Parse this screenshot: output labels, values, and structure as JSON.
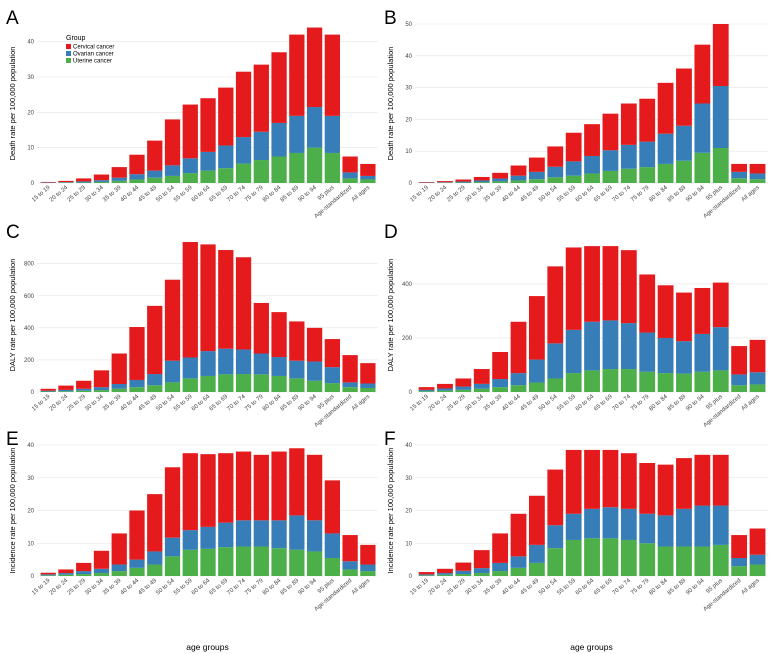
{
  "colors": {
    "cervical": "#e41a1c",
    "ovarian": "#377eb8",
    "uterine": "#4daf4a"
  },
  "legend": {
    "title": "Group",
    "items": [
      {
        "name": "Cervical cancer",
        "color": "#e41a1c"
      },
      {
        "name": "Ovarian cancer",
        "color": "#377eb8"
      },
      {
        "name": "Uterine cancer",
        "color": "#4daf4a"
      }
    ]
  },
  "chart_data": [
    {
      "panel": "A",
      "type": "bar",
      "stacked": true,
      "ylabel": "Death rate per 100,000 population",
      "xlabel": "",
      "ylim": [
        0,
        45
      ],
      "yticks": [
        0,
        10,
        20,
        30,
        40
      ],
      "categories": [
        "15 to 19",
        "20 to 24",
        "25 to 29",
        "30 to 34",
        "35 to 39",
        "40 to 44",
        "45 to 49",
        "50 to 54",
        "55 to 59",
        "60 to 64",
        "65 to 69",
        "70 to 74",
        "75 to 79",
        "80 to 84",
        "85 to 89",
        "90 to 94",
        "95 plus",
        "Age-standardized",
        "All ages"
      ],
      "series": [
        {
          "name": "Uterine cancer",
          "values": [
            0.05,
            0.1,
            0.15,
            0.3,
            0.6,
            1.0,
            1.5,
            2.0,
            2.8,
            3.5,
            4.2,
            5.5,
            6.5,
            7.5,
            8.5,
            10,
            8.5,
            1.3,
            1.0
          ]
        },
        {
          "name": "Ovarian cancer",
          "values": [
            0.1,
            0.15,
            0.3,
            0.5,
            0.9,
            1.5,
            2.0,
            3.0,
            4.2,
            5.3,
            6.4,
            7.5,
            8.0,
            9.5,
            10.5,
            11.5,
            10.5,
            1.7,
            1.0
          ]
        },
        {
          "name": "Cervical cancer",
          "values": [
            0.15,
            0.35,
            0.85,
            1.6,
            3.0,
            5.5,
            8.5,
            13.0,
            15.2,
            15.2,
            16.4,
            18.5,
            19.0,
            20.0,
            23.0,
            22.5,
            23.0,
            4.5,
            3.4
          ]
        }
      ]
    },
    {
      "panel": "B",
      "type": "bar",
      "stacked": true,
      "ylabel": "Death rate per 100,000 population",
      "xlabel": "",
      "ylim": [
        0,
        50
      ],
      "yticks": [
        0,
        10,
        20,
        30,
        40,
        50
      ],
      "categories": [
        "15 to 19",
        "20 to 24",
        "25 to 29",
        "30 to 34",
        "35 to 39",
        "40 to 44",
        "45 to 49",
        "50 to 54",
        "55 to 59",
        "60 to 64",
        "65 to 69",
        "70 to 74",
        "75 to 79",
        "80 to 84",
        "85 to 89",
        "90 to 94",
        "95 plus",
        "Age-standardized",
        "All ages"
      ],
      "series": [
        {
          "name": "Uterine cancer",
          "values": [
            0.05,
            0.1,
            0.15,
            0.3,
            0.5,
            0.8,
            1.2,
            1.8,
            2.3,
            3.0,
            3.8,
            4.5,
            5.0,
            6.0,
            7.0,
            9.5,
            11.0,
            1.5,
            1.2
          ]
        },
        {
          "name": "Ovarian cancer",
          "values": [
            0.1,
            0.15,
            0.3,
            0.5,
            0.9,
            1.5,
            2.3,
            3.3,
            4.5,
            5.5,
            6.5,
            7.5,
            8.0,
            9.5,
            11.0,
            15.5,
            19.5,
            2.0,
            1.8
          ]
        },
        {
          "name": "Cervical cancer",
          "values": [
            0.15,
            0.35,
            0.65,
            1.1,
            1.8,
            3.2,
            4.5,
            6.4,
            9.0,
            10.0,
            11.5,
            13.0,
            13.5,
            16.0,
            18.0,
            18.5,
            19.5,
            2.5,
            3.0
          ]
        }
      ]
    },
    {
      "panel": "C",
      "type": "bar",
      "stacked": true,
      "ylabel": "DALY rate per 100,000 population",
      "xlabel": "",
      "ylim": [
        0,
        960
      ],
      "yticks": [
        0,
        200,
        400,
        600,
        800
      ],
      "categories": [
        "15 to 19",
        "20 to 24",
        "25 to 29",
        "30 to 34",
        "35 to 39",
        "40 to 44",
        "45 to 49",
        "50 to 54",
        "55 to 59",
        "60 to 64",
        "65 to 69",
        "70 to 74",
        "75 to 79",
        "80 to 84",
        "85 to 89",
        "90 to 94",
        "95 plus",
        "Age-standardized",
        "All ages"
      ],
      "series": [
        {
          "name": "Uterine cancer",
          "values": [
            3,
            5,
            8,
            12,
            20,
            30,
            42,
            60,
            85,
            100,
            110,
            112,
            110,
            100,
            85,
            70,
            55,
            30,
            25
          ]
        },
        {
          "name": "Ovarian cancer",
          "values": [
            5,
            8,
            12,
            18,
            30,
            45,
            70,
            135,
            130,
            155,
            160,
            153,
            130,
            118,
            110,
            120,
            100,
            30,
            28
          ]
        },
        {
          "name": "Cervical cancer",
          "values": [
            12,
            27,
            50,
            105,
            190,
            330,
            425,
            505,
            720,
            665,
            615,
            575,
            315,
            280,
            245,
            210,
            175,
            170,
            127
          ]
        }
      ]
    },
    {
      "panel": "D",
      "type": "bar",
      "stacked": true,
      "ylabel": "DALY rate per 100,000 population",
      "xlabel": "",
      "ylim": [
        0,
        570
      ],
      "yticks": [
        0,
        200,
        400
      ],
      "categories": [
        "15 to 19",
        "20 to 24",
        "25 to 29",
        "30 to 34",
        "35 to 39",
        "40 to 44",
        "45 to 49",
        "50 to 54",
        "55 to 59",
        "60 to 64",
        "65 to 69",
        "70 to 74",
        "75 to 79",
        "80 to 84",
        "85 to 89",
        "90 to 94",
        "95 plus",
        "Age-standardized",
        "All ages"
      ],
      "series": [
        {
          "name": "Uterine cancer",
          "values": [
            3,
            5,
            8,
            12,
            18,
            25,
            35,
            50,
            70,
            80,
            85,
            85,
            75,
            70,
            68,
            75,
            80,
            25,
            28
          ]
        },
        {
          "name": "Ovarian cancer",
          "values": [
            5,
            8,
            12,
            18,
            30,
            45,
            85,
            130,
            160,
            180,
            180,
            170,
            145,
            130,
            120,
            140,
            160,
            40,
            45
          ]
        },
        {
          "name": "Cervical cancer",
          "values": [
            10,
            17,
            30,
            55,
            100,
            190,
            235,
            285,
            305,
            280,
            275,
            270,
            215,
            195,
            180,
            170,
            165,
            105,
            120
          ]
        }
      ]
    },
    {
      "panel": "E",
      "type": "bar",
      "stacked": true,
      "ylabel": "Incidence rate per 100,000 population",
      "xlabel": "age groups",
      "ylim": [
        0,
        40
      ],
      "yticks": [
        0,
        10,
        20,
        30,
        40
      ],
      "categories": [
        "15 to 19",
        "20 to 24",
        "25 to 29",
        "30 to 34",
        "35 to 39",
        "40 to 44",
        "45 to 49",
        "50 to 54",
        "55 to 59",
        "60 to 64",
        "65 to 69",
        "70 to 74",
        "75 to 79",
        "80 to 84",
        "85 to 89",
        "90 to 94",
        "95 plus",
        "Age-standardized",
        "All ages"
      ],
      "series": [
        {
          "name": "Uterine cancer",
          "values": [
            0.2,
            0.4,
            0.6,
            0.9,
            1.5,
            2.5,
            3.5,
            6.0,
            8.0,
            8.3,
            8.8,
            9.0,
            9.0,
            8.5,
            8.0,
            7.5,
            5.5,
            2.0,
            1.5
          ]
        },
        {
          "name": "Ovarian cancer",
          "values": [
            0.3,
            0.5,
            0.9,
            1.3,
            2.0,
            2.5,
            4.0,
            5.7,
            6.0,
            6.7,
            7.5,
            8.0,
            8.0,
            8.5,
            10.5,
            9.5,
            7.5,
            2.5,
            2.0
          ]
        },
        {
          "name": "Cervical cancer",
          "values": [
            0.5,
            1.1,
            2.5,
            5.5,
            9.5,
            15.0,
            17.5,
            21.5,
            23.5,
            22.2,
            21.2,
            21.0,
            20.0,
            21.0,
            20.5,
            20.0,
            16.2,
            8.0,
            6.0
          ]
        }
      ]
    },
    {
      "panel": "F",
      "type": "bar",
      "stacked": true,
      "ylabel": "Incidence rate per 100,000 population",
      "xlabel": "age groups",
      "ylim": [
        0,
        40
      ],
      "yticks": [
        0,
        10,
        20,
        30,
        40
      ],
      "categories": [
        "15 to 19",
        "20 to 24",
        "25 to 29",
        "30 to 34",
        "35 to 39",
        "40 to 44",
        "45 to 49",
        "50 to 54",
        "55 to 59",
        "60 to 64",
        "65 to 69",
        "70 to 74",
        "75 to 79",
        "80 to 84",
        "85 to 89",
        "90 to 94",
        "95 plus",
        "Age-standardized",
        "All ages"
      ],
      "series": [
        {
          "name": "Uterine cancer",
          "values": [
            0.2,
            0.4,
            0.6,
            0.9,
            1.5,
            2.5,
            4.0,
            8.5,
            11.0,
            11.5,
            11.5,
            11.0,
            10.0,
            9.0,
            9.0,
            9.0,
            9.5,
            3.0,
            3.5
          ]
        },
        {
          "name": "Ovarian cancer",
          "values": [
            0.3,
            0.5,
            1.0,
            1.5,
            2.5,
            3.5,
            5.5,
            7.0,
            8.0,
            9.0,
            9.5,
            9.5,
            9.0,
            9.5,
            11.5,
            12.5,
            12.0,
            2.5,
            3.0
          ]
        },
        {
          "name": "Cervical cancer",
          "values": [
            0.7,
            1.3,
            2.5,
            5.5,
            9.0,
            13.0,
            15.0,
            17.0,
            19.5,
            18.0,
            17.5,
            17.0,
            15.5,
            15.5,
            15.5,
            15.5,
            15.5,
            7.0,
            8.0
          ]
        }
      ]
    }
  ]
}
